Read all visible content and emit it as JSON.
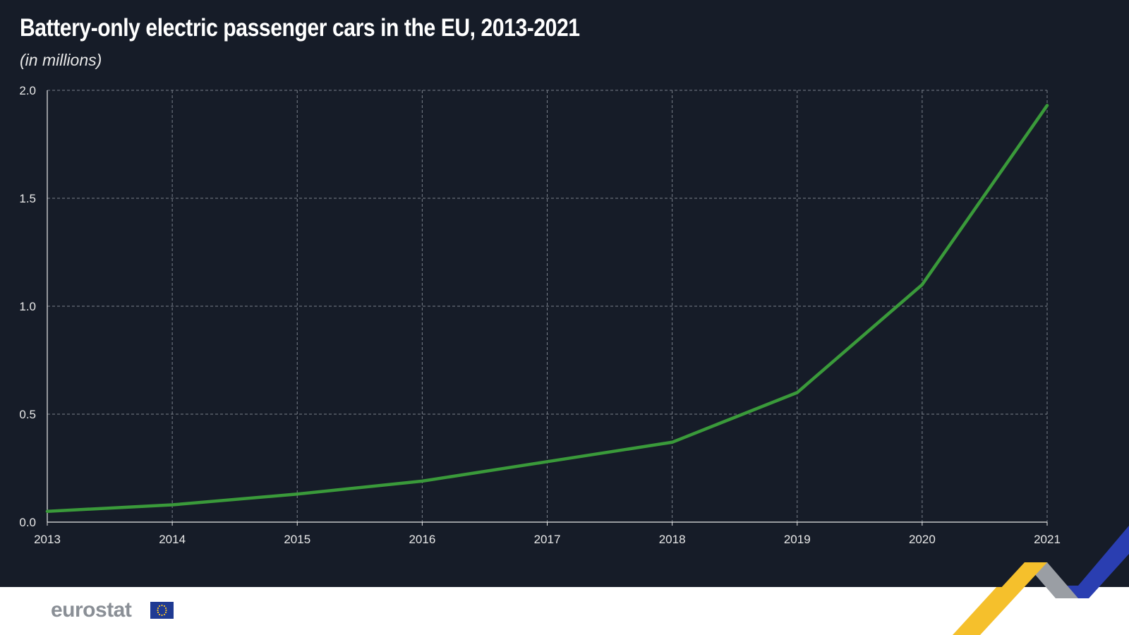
{
  "title": "Battery-only electric passenger cars in the EU, 2013-2021",
  "subtitle": "(in millions)",
  "brand": {
    "name": "eurostat",
    "flag_icon": "eu-flag-icon"
  },
  "colors": {
    "background": "#161c28",
    "line": "#3a9a3a",
    "grid": "#7a808a",
    "accent_yellow": "#f5c02c",
    "accent_grey": "#9a9ea4",
    "accent_blue": "#2a3eb1"
  },
  "chart_data": {
    "type": "line",
    "title": "Battery-only electric passenger cars in the EU, 2013-2021",
    "subtitle": "(in millions)",
    "xlabel": "",
    "ylabel": "",
    "x": [
      "2013",
      "2014",
      "2015",
      "2016",
      "2017",
      "2018",
      "2019",
      "2020",
      "2021"
    ],
    "series": [
      {
        "values": [
          0.05,
          0.08,
          0.13,
          0.19,
          0.28,
          0.37,
          0.6,
          1.1,
          1.93
        ]
      }
    ],
    "y_ticks": [
      "0.0",
      "0.5",
      "1.0",
      "1.5",
      "2.0"
    ],
    "ylim": [
      0,
      2.0
    ],
    "grid": true,
    "legend": "none"
  }
}
